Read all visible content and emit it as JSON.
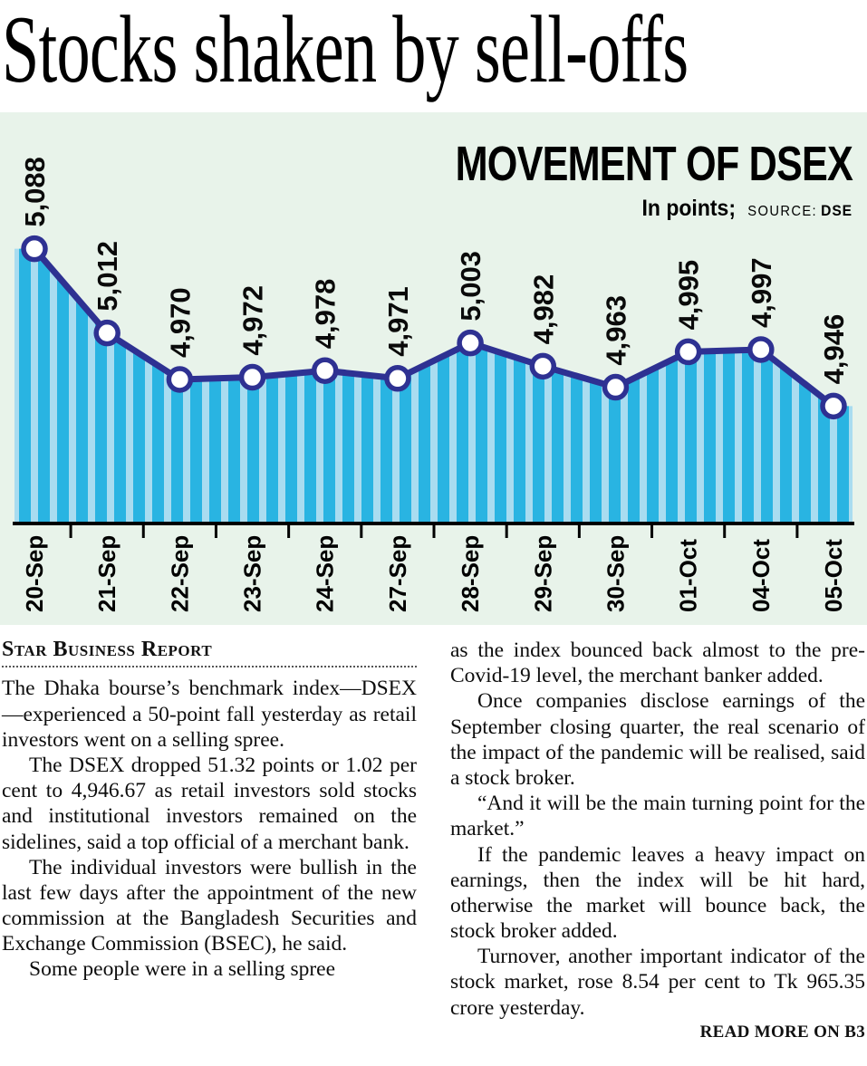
{
  "headline": "Stocks shaken by sell-offs",
  "chart": {
    "title": "MOVEMENT OF DSEX",
    "units": "In points;",
    "source_label": "SOURCE:",
    "source_value": "DSE"
  },
  "chart_data": {
    "type": "line",
    "title": "MOVEMENT OF DSEX",
    "unit": "points",
    "source": "DSE",
    "categories": [
      "20-Sep",
      "21-Sep",
      "22-Sep",
      "23-Sep",
      "24-Sep",
      "27-Sep",
      "28-Sep",
      "29-Sep",
      "30-Sep",
      "01-Oct",
      "04-Oct",
      "05-Oct"
    ],
    "values": [
      5088,
      5012,
      4970,
      4972,
      4978,
      4971,
      5003,
      4982,
      4963,
      4995,
      4997,
      4946
    ],
    "labels": [
      "5,088",
      "5,012",
      "4,970",
      "4,972",
      "4,978",
      "4,971",
      "5,003",
      "4,982",
      "4,963",
      "4,995",
      "4,997",
      "4,946"
    ],
    "ylim": [
      4840,
      5100
    ],
    "grid": false,
    "legend": "none",
    "style": "line-with-markers-over-striped-bars",
    "colors": {
      "panel_bg": "#e8f3ea",
      "bar_dark": "#29b4e2",
      "bar_light": "#a9dcf0",
      "line": "#2e3192",
      "marker_fill": "#ffffff",
      "axis": "#000000"
    }
  },
  "article": {
    "byline": "Star Business Report",
    "left_paragraphs": [
      "The Dhaka bourse’s benchmark index—DSEX—experienced a 50-point fall yesterday as retail investors went on a selling spree.",
      "The DSEX dropped 51.32 points or 1.02 per cent to 4,946.67 as retail investors sold stocks and institutional investors remained on the sidelines, said a top official of a merchant bank.",
      "The individual investors were bullish in the last few days after the appointment of the new commission at the Bangladesh Securities and Exchange Commission (BSEC), he said.",
      "Some people were in a selling spree"
    ],
    "right_paragraphs": [
      "as the index bounced back almost to the pre-Covid-19 level, the merchant banker added.",
      "Once companies disclose earnings of the September closing quarter, the real scenario of the impact of the pandemic will be realised, said a stock broker.",
      "“And it will be the main turning point for the market.”",
      "If the pandemic leaves a heavy impact on earnings, then the index will be hit hard, otherwise the market will bounce back, the stock broker added.",
      "Turnover, another important indicator of the stock market, rose 8.54 per cent to Tk 965.35 crore yesterday."
    ],
    "read_more": "READ MORE ON B3"
  }
}
